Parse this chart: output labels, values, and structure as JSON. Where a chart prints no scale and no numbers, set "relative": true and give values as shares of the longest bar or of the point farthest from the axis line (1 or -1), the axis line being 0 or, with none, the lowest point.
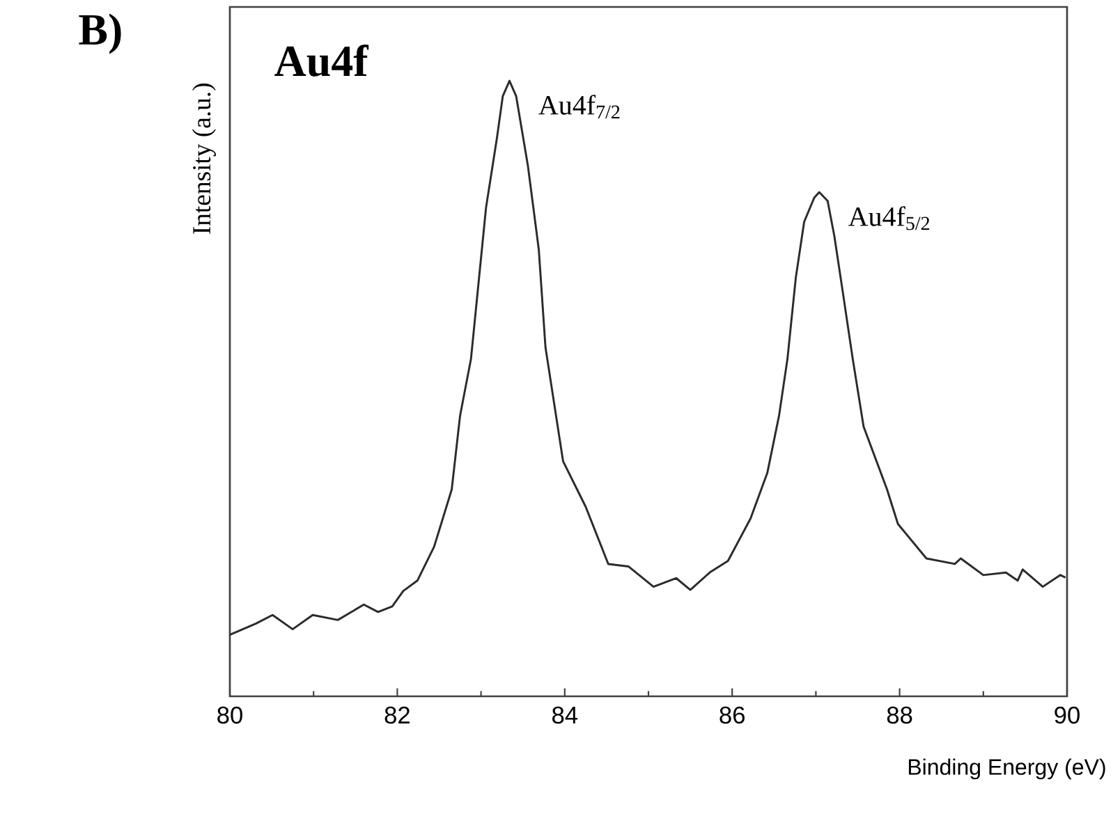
{
  "chart_data": {
    "type": "line",
    "xlabel": "Binding Energy (eV)",
    "ylabel": "Intensity (a.u.)",
    "relative": true,
    "color": "#2b2b2b",
    "annotations": [
      "B)",
      "Au4f",
      {
        "text": "Au4f$_{7/2}$",
        "x": 83.34,
        "y": 1.0
      },
      {
        "text": "Au4f$_{5/2}$",
        "x": 87.04,
        "y": 0.819
      }
    ],
    "xlim": [
      80,
      90
    ],
    "xticks": [
      80,
      82,
      84,
      86,
      88,
      90
    ],
    "x": [
      80.0,
      80.31,
      80.51,
      80.75,
      80.99,
      81.29,
      81.6,
      81.77,
      81.94,
      82.07,
      82.24,
      82.44,
      82.65,
      82.75,
      82.88,
      83.06,
      83.19,
      83.26,
      83.34,
      83.42,
      83.56,
      83.69,
      83.77,
      83.98,
      84.25,
      84.52,
      84.76,
      85.06,
      85.33,
      85.5,
      85.74,
      85.95,
      86.22,
      86.42,
      86.56,
      86.66,
      86.76,
      86.86,
      86.98,
      87.04,
      87.14,
      87.22,
      87.32,
      87.44,
      87.57,
      87.85,
      87.98,
      88.32,
      88.66,
      88.73,
      89.0,
      89.27,
      89.41,
      89.47,
      89.71,
      89.92,
      89.98
    ],
    "values": [
      0.1,
      0.118,
      0.132,
      0.109,
      0.132,
      0.124,
      0.149,
      0.137,
      0.146,
      0.171,
      0.188,
      0.243,
      0.336,
      0.456,
      0.548,
      0.794,
      0.907,
      0.975,
      1.0,
      0.975,
      0.862,
      0.726,
      0.567,
      0.382,
      0.308,
      0.215,
      0.211,
      0.178,
      0.192,
      0.173,
      0.202,
      0.22,
      0.289,
      0.363,
      0.456,
      0.548,
      0.68,
      0.771,
      0.81,
      0.819,
      0.805,
      0.748,
      0.658,
      0.548,
      0.438,
      0.336,
      0.28,
      0.224,
      0.215,
      0.224,
      0.197,
      0.201,
      0.188,
      0.206,
      0.178,
      0.197,
      0.193
    ]
  }
}
